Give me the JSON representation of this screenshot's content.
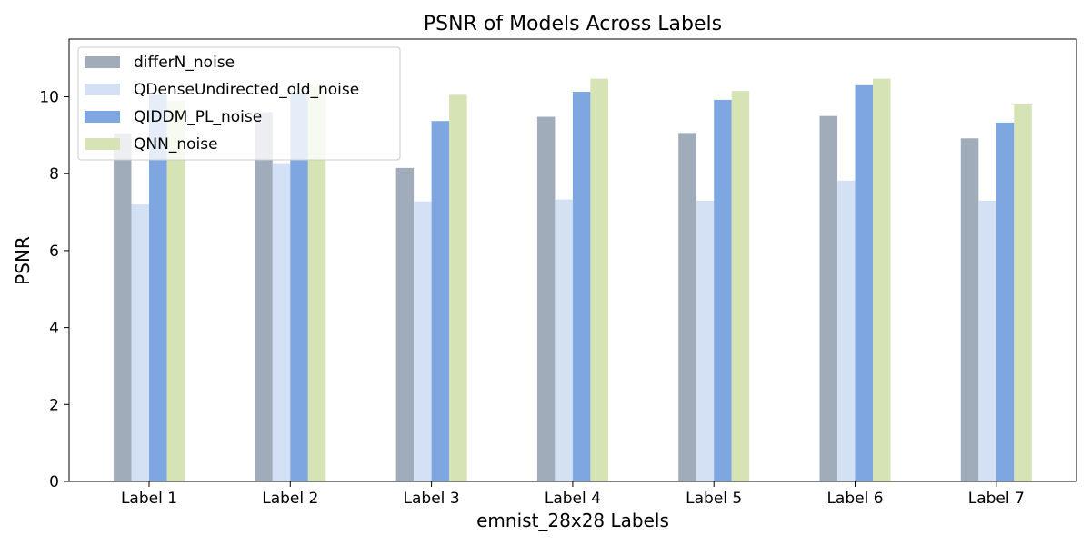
{
  "chart_data": {
    "type": "bar",
    "title": "PSNR of Models Across Labels",
    "xlabel": "emnist_28x28 Labels",
    "ylabel": "PSNR",
    "categories": [
      "Label 1",
      "Label 2",
      "Label 3",
      "Label 4",
      "Label 5",
      "Label 6",
      "Label 7"
    ],
    "ylim": [
      0,
      11.5
    ],
    "yticks": [
      0,
      2,
      4,
      6,
      8,
      10
    ],
    "grid": false,
    "legend_position": "top-left",
    "series": [
      {
        "name": "differN_noise",
        "color": "#a0acba",
        "values": [
          9.05,
          9.6,
          8.15,
          9.48,
          9.06,
          9.5,
          8.92
        ]
      },
      {
        "name": "QDenseUndirected_old_noise",
        "color": "#d4e1f5",
        "values": [
          7.2,
          8.25,
          7.28,
          7.33,
          7.3,
          7.82,
          7.3
        ]
      },
      {
        "name": "QIDDM_PL_noise",
        "color": "#7ea6e0",
        "values": [
          10.05,
          10.1,
          9.37,
          10.13,
          9.92,
          10.3,
          9.33
        ]
      },
      {
        "name": "QNN_noise",
        "color": "#d5e3b5",
        "values": [
          9.9,
          10.35,
          10.05,
          10.47,
          10.15,
          10.47,
          9.8
        ]
      }
    ]
  }
}
